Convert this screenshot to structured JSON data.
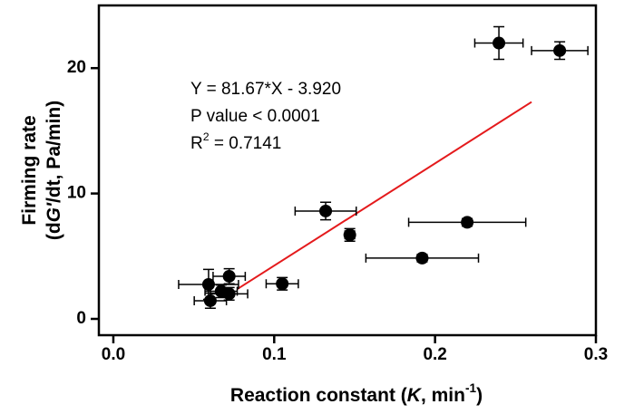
{
  "chart_data": {
    "type": "scatter",
    "xlabel": [
      {
        "text": "Reaction constant ("
      },
      {
        "text": "K",
        "italic": true
      },
      {
        "text": ", min"
      },
      {
        "text": "-1",
        "sup": true
      },
      {
        "text": ")"
      }
    ],
    "ylabel": [
      [
        {
          "text": "Firming rate"
        }
      ],
      [
        {
          "text": "(d"
        },
        {
          "text": "G'",
          "italic": true
        },
        {
          "text": "/dt, Pa/min)"
        }
      ]
    ],
    "annotations": [
      [
        {
          "text": "Y = 81.67*X - 3.920"
        }
      ],
      [
        {
          "text": "P value < 0.0001"
        }
      ],
      [
        {
          "text": "R"
        },
        {
          "text": "2",
          "sup": true
        },
        {
          "text": " = 0.7141"
        }
      ]
    ],
    "xlim": [
      -0.009,
      0.3
    ],
    "ylim": [
      -1.3,
      25
    ],
    "xticks": [
      {
        "value": 0,
        "label": "0.0"
      },
      0.1,
      0.2,
      0.3
    ],
    "yticks": [
      0,
      10,
      20
    ],
    "series": [
      {
        "color": "#000000",
        "x": [
          0.0592,
          0.0603,
          0.067,
          0.072,
          0.072,
          0.105,
          0.132,
          0.147,
          0.192,
          0.22,
          0.2397,
          0.2775
        ],
        "y": [
          2.75,
          1.45,
          2.2,
          3.4,
          2.0,
          2.8,
          8.6,
          6.7,
          4.85,
          7.7,
          22.0,
          21.4
        ],
        "xerr": [
          0.0186,
          0.01,
          0.01,
          0.01,
          0.0115,
          0.01,
          0.019,
          0.003,
          0.035,
          0.0364,
          0.015,
          0.0175
        ],
        "yerr": [
          1.2,
          0.6,
          0.5,
          0.6,
          0.5,
          0.5,
          0.7,
          0.5,
          0.3,
          0.3,
          1.3,
          0.7
        ]
      }
    ],
    "fit": {
      "color": "#e41a1c",
      "x": [
        0.077,
        0.26
      ],
      "y": [
        2.37,
        17.3
      ]
    }
  }
}
